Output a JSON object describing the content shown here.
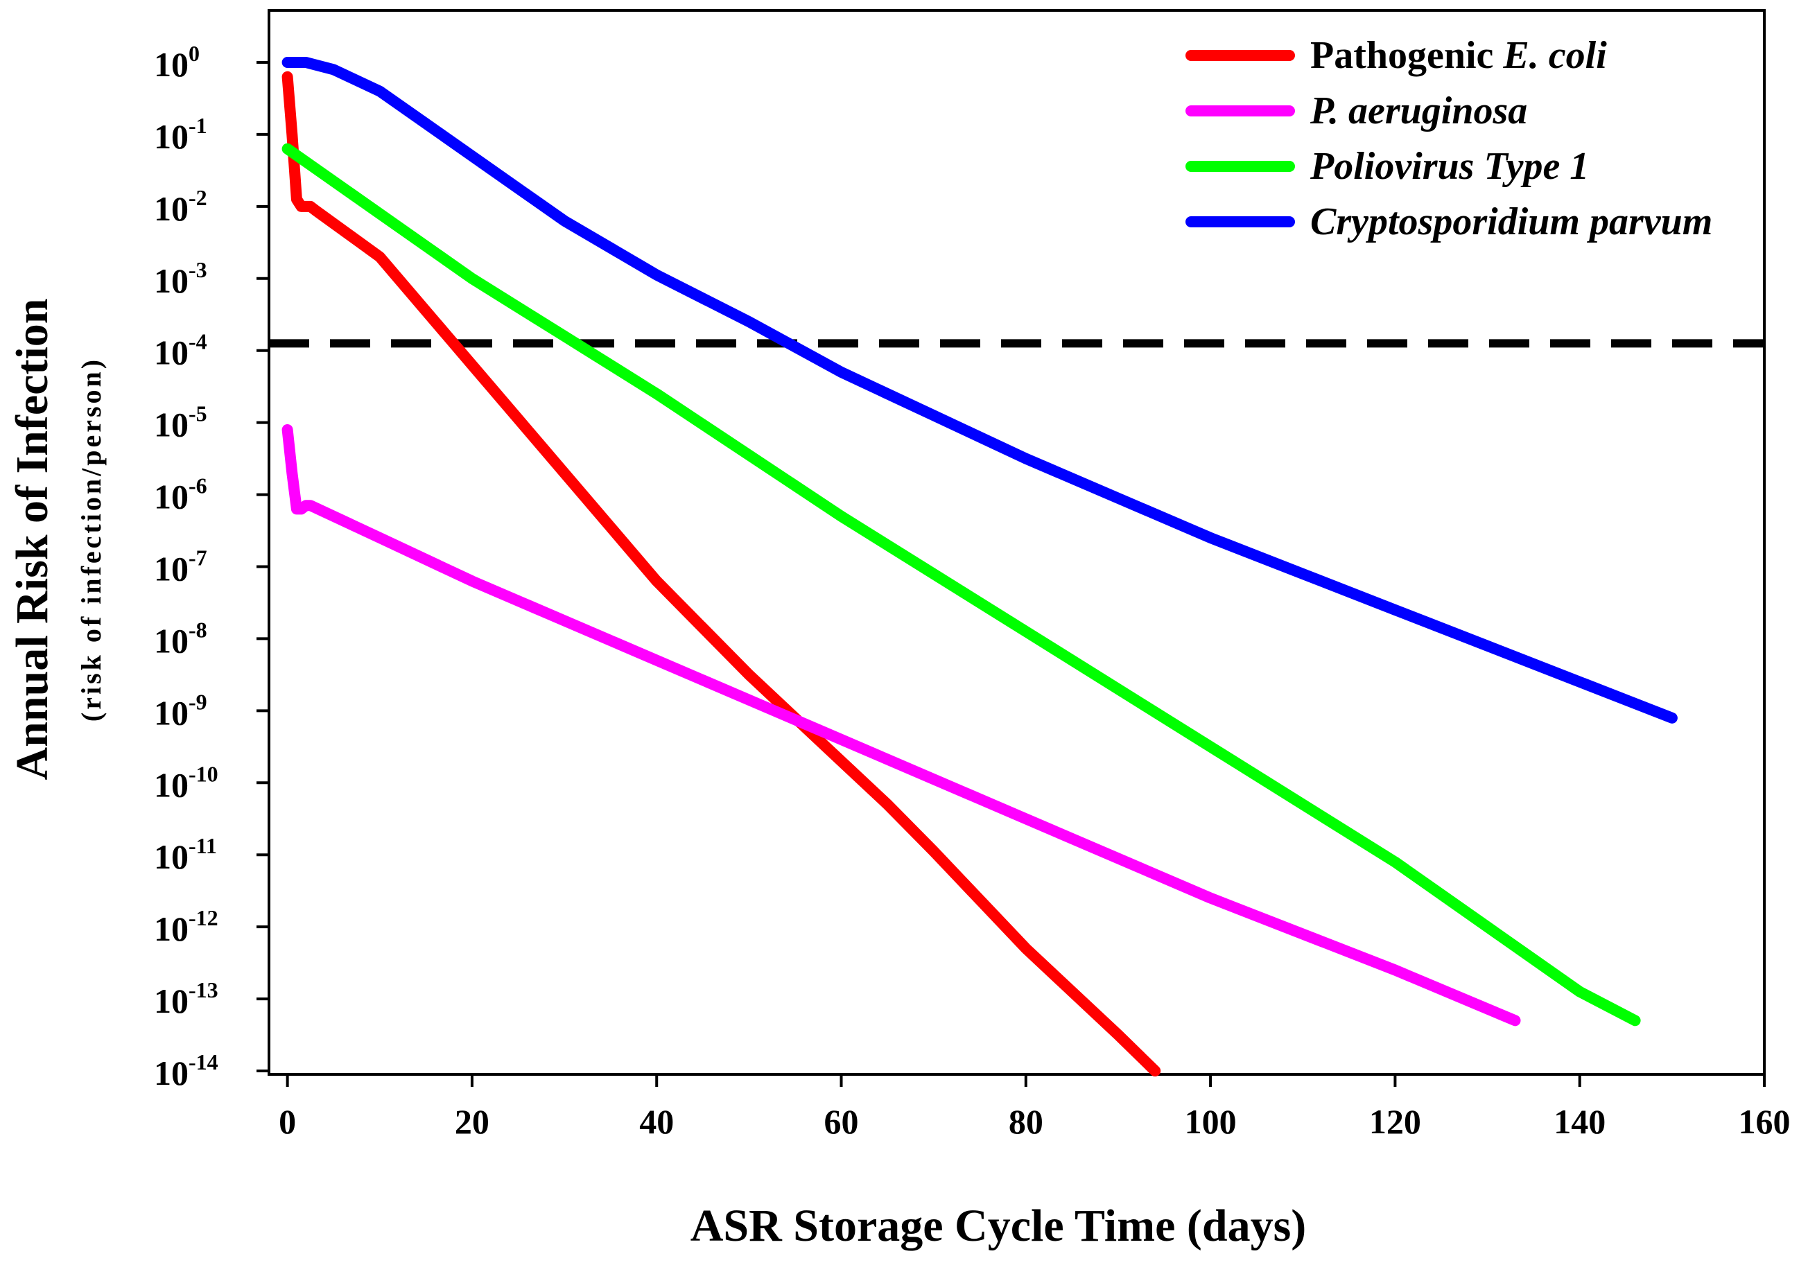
{
  "chart_data": {
    "type": "line",
    "title": "",
    "xlabel": "ASR Storage Cycle Time (days)",
    "ylabel": "Annual Risk of Infection",
    "ylabel_sub": "(risk of infection/person)",
    "xlim": [
      -2,
      160
    ],
    "ylim_log10": [
      -14,
      0.7
    ],
    "x_ticks": [
      0,
      20,
      40,
      60,
      80,
      100,
      120,
      140,
      160
    ],
    "y_ticks": [
      {
        "exp": 0,
        "base": "10",
        "sup": "0"
      },
      {
        "exp": -1,
        "base": "10",
        "sup": "-1"
      },
      {
        "exp": -2,
        "base": "10",
        "sup": "-2"
      },
      {
        "exp": -3,
        "base": "10",
        "sup": "-3"
      },
      {
        "exp": -4,
        "base": "10",
        "sup": "-4"
      },
      {
        "exp": -5,
        "base": "10",
        "sup": "-5"
      },
      {
        "exp": -6,
        "base": "10",
        "sup": "-6"
      },
      {
        "exp": -7,
        "base": "10",
        "sup": "-7"
      },
      {
        "exp": -8,
        "base": "10",
        "sup": "-8"
      },
      {
        "exp": -9,
        "base": "10",
        "sup": "-9"
      },
      {
        "exp": -10,
        "base": "10",
        "sup": "-10"
      },
      {
        "exp": -11,
        "base": "10",
        "sup": "-11"
      },
      {
        "exp": -12,
        "base": "10",
        "sup": "-12"
      },
      {
        "exp": -13,
        "base": "10",
        "sup": "-13"
      },
      {
        "exp": -14,
        "base": "10",
        "sup": "-14"
      }
    ],
    "reference_line": {
      "y_log10": -3.9,
      "style": "dashed",
      "color": "#000000"
    },
    "legend_position": "top-right",
    "series": [
      {
        "name": "Pathogenic E. coli",
        "legend_plain": "Pathogenic ",
        "legend_italic": "E. coli",
        "color": "#ff0000",
        "points": [
          [
            0,
            -0.2
          ],
          [
            0.5,
            -1.0
          ],
          [
            1.0,
            -1.9
          ],
          [
            1.5,
            -2.0
          ],
          [
            2.0,
            -2.0
          ],
          [
            2.5,
            -2.0
          ],
          [
            3.0,
            -2.05
          ],
          [
            10,
            -2.7
          ],
          [
            20,
            -4.2
          ],
          [
            30,
            -5.7
          ],
          [
            40,
            -7.2
          ],
          [
            50,
            -8.5
          ],
          [
            60,
            -9.7
          ],
          [
            65,
            -10.3
          ],
          [
            70,
            -10.95
          ],
          [
            80,
            -12.3
          ],
          [
            90,
            -13.5
          ],
          [
            94,
            -14.0
          ]
        ]
      },
      {
        "name": "P. aeruginosa",
        "legend_plain": "",
        "legend_italic": "P. aeruginosa",
        "color": "#ff00ff",
        "points": [
          [
            0,
            -5.1
          ],
          [
            0.5,
            -5.7
          ],
          [
            1.0,
            -6.2
          ],
          [
            1.5,
            -6.2
          ],
          [
            2.0,
            -6.15
          ],
          [
            2.5,
            -6.15
          ],
          [
            10,
            -6.6
          ],
          [
            20,
            -7.2
          ],
          [
            40,
            -8.3
          ],
          [
            60,
            -9.4
          ],
          [
            80,
            -10.5
          ],
          [
            100,
            -11.6
          ],
          [
            120,
            -12.6
          ],
          [
            133,
            -13.3
          ]
        ]
      },
      {
        "name": "Poliovirus Type 1",
        "legend_plain": "",
        "legend_italic": "Poliovirus Type 1",
        "color": "#00ff00",
        "points": [
          [
            0,
            -1.2
          ],
          [
            10,
            -2.1
          ],
          [
            20,
            -3.0
          ],
          [
            30,
            -3.8
          ],
          [
            40,
            -4.6
          ],
          [
            60,
            -6.3
          ],
          [
            80,
            -7.9
          ],
          [
            100,
            -9.5
          ],
          [
            120,
            -11.1
          ],
          [
            140,
            -12.9
          ],
          [
            146,
            -13.3
          ]
        ]
      },
      {
        "name": "Cryptosporidium parvum",
        "legend_plain": "",
        "legend_italic": "Cryptosporidium parvum",
        "color": "#0000ff",
        "points": [
          [
            0,
            0.0
          ],
          [
            2,
            0.0
          ],
          [
            5,
            -0.1
          ],
          [
            10,
            -0.4
          ],
          [
            15,
            -0.85
          ],
          [
            20,
            -1.3
          ],
          [
            30,
            -2.2
          ],
          [
            40,
            -2.95
          ],
          [
            50,
            -3.6
          ],
          [
            60,
            -4.3
          ],
          [
            70,
            -4.9
          ],
          [
            80,
            -5.5
          ],
          [
            90,
            -6.05
          ],
          [
            100,
            -6.6
          ],
          [
            110,
            -7.1
          ],
          [
            120,
            -7.6
          ],
          [
            130,
            -8.1
          ],
          [
            140,
            -8.6
          ],
          [
            150,
            -9.1
          ]
        ]
      }
    ]
  }
}
